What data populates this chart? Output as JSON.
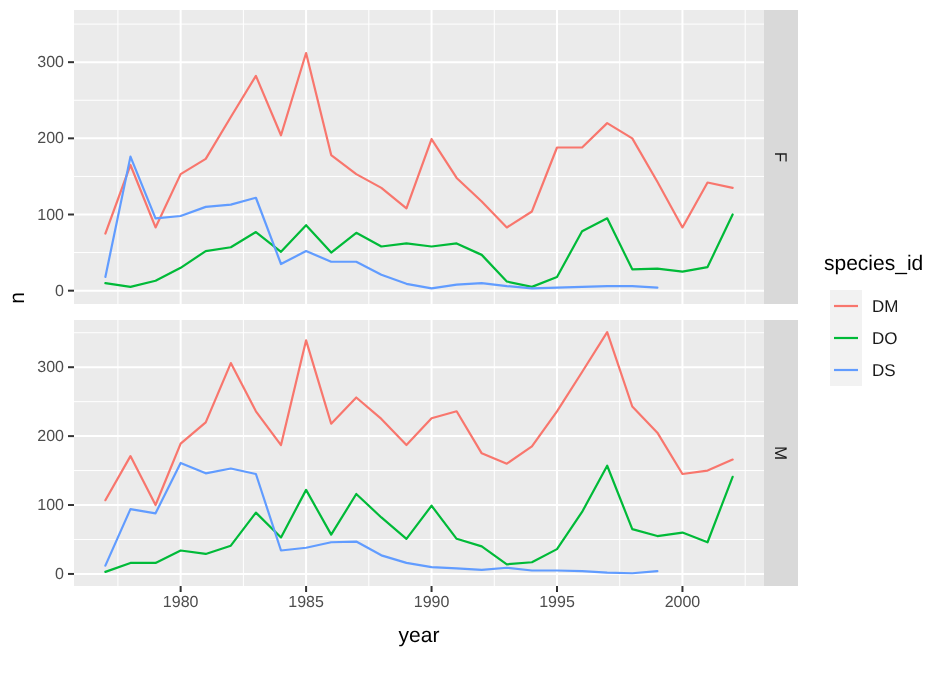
{
  "chart_data": [
    {
      "type": "line",
      "title": "F",
      "ylabel": "n",
      "legend_title": "species_id",
      "legend": "right",
      "grid": true,
      "tick_labels": "y",
      "x": [
        1977,
        1978,
        1979,
        1980,
        1981,
        1982,
        1983,
        1984,
        1985,
        1986,
        1987,
        1988,
        1989,
        1990,
        1991,
        1992,
        1993,
        1994,
        1995,
        1996,
        1997,
        1998,
        1999,
        2000,
        2001,
        2002
      ],
      "xlim": [
        1975.75,
        2003.25
      ],
      "xticks": [
        1980,
        1985,
        1990,
        1995,
        2000
      ],
      "ylim": [
        -17.5,
        368.5
      ],
      "yticks": [
        0,
        100,
        200,
        300
      ],
      "series": [
        {
          "name": "DM",
          "color": "#f8766d",
          "values": [
            75,
            165,
            83,
            153,
            173,
            228,
            282,
            204,
            312,
            178,
            153,
            135,
            108,
            199,
            148,
            117,
            83,
            104,
            188,
            188,
            220,
            200,
            143,
            83,
            142,
            135
          ]
        },
        {
          "name": "DO",
          "color": "#00ba38",
          "values": [
            10,
            5,
            13,
            30,
            52,
            57,
            77,
            51,
            86,
            50,
            76,
            58,
            62,
            58,
            62,
            47,
            12,
            5,
            18,
            78,
            95,
            28,
            29,
            25,
            31,
            100
          ]
        },
        {
          "name": "DS",
          "color": "#619cff",
          "x": [
            1977,
            1978,
            1979,
            1980,
            1981,
            1982,
            1983,
            1984,
            1985,
            1986,
            1987,
            1988,
            1989,
            1990,
            1991,
            1992,
            1993,
            1994,
            1995,
            1996,
            1997,
            1998,
            1999
          ],
          "values": [
            18,
            176,
            95,
            98,
            110,
            113,
            122,
            35,
            52,
            38,
            38,
            21,
            9,
            3,
            8,
            10,
            6,
            3,
            4,
            5,
            6,
            6,
            4
          ]
        }
      ]
    },
    {
      "type": "line",
      "title": "M",
      "xlabel": "year",
      "grid": true,
      "x": [
        1977,
        1978,
        1979,
        1980,
        1981,
        1982,
        1983,
        1984,
        1985,
        1986,
        1987,
        1988,
        1989,
        1990,
        1991,
        1992,
        1993,
        1994,
        1995,
        1996,
        1997,
        1998,
        1999,
        2000,
        2001,
        2002
      ],
      "xlim": [
        1975.75,
        2003.25
      ],
      "xticks": [
        1980,
        1985,
        1990,
        1995,
        2000
      ],
      "ylim": [
        -17.5,
        368.5
      ],
      "yticks": [
        0,
        100,
        200,
        300
      ],
      "series": [
        {
          "color": "#f8766d",
          "values": [
            107,
            171,
            100,
            189,
            220,
            306,
            236,
            187,
            339,
            218,
            256,
            225,
            187,
            226,
            236,
            175,
            160,
            185,
            236,
            293,
            351,
            243,
            205,
            145,
            150,
            166
          ]
        },
        {
          "color": "#00ba38",
          "values": [
            3,
            16,
            16,
            34,
            29,
            41,
            89,
            53,
            122,
            57,
            116,
            82,
            51,
            99,
            51,
            40,
            14,
            17,
            36,
            90,
            157,
            65,
            55,
            60,
            46,
            141
          ]
        },
        {
          "color": "#619cff",
          "x": [
            1977,
            1978,
            1979,
            1980,
            1981,
            1982,
            1983,
            1984,
            1985,
            1986,
            1987,
            1988,
            1989,
            1990,
            1991,
            1992,
            1993,
            1994,
            1995,
            1996,
            1997,
            1998,
            1999
          ],
          "values": [
            12,
            94,
            88,
            161,
            146,
            153,
            145,
            34,
            38,
            46,
            47,
            27,
            16,
            10,
            8,
            6,
            9,
            5,
            5,
            4,
            2,
            1,
            4
          ]
        }
      ]
    }
  ]
}
